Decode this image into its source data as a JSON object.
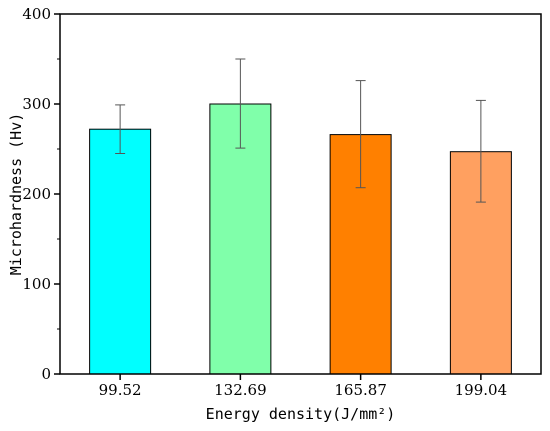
{
  "chart_data": {
    "type": "bar",
    "title": "",
    "xlabel": "Energy density(J/mm²)",
    "ylabel": "Microhardness (Hv)",
    "categories": [
      "99.52",
      "132.69",
      "165.87",
      "199.04"
    ],
    "series": [
      {
        "values": [
          272,
          300,
          266,
          247
        ],
        "error_low": [
          245,
          251,
          207,
          191
        ],
        "error_high": [
          299,
          350,
          326,
          304
        ]
      }
    ],
    "ylim": [
      0,
      400
    ],
    "yticks": [
      "0",
      "100",
      "200",
      "300",
      "400"
    ],
    "bar_colors": [
      "#00ffff",
      "#80ffaa",
      "#ff8000",
      "#ffa060"
    ],
    "grid": false,
    "legend": "none"
  }
}
